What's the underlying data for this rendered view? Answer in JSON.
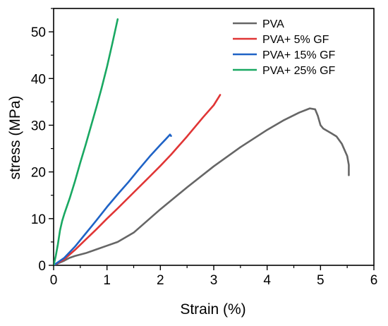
{
  "chart_data": {
    "type": "line",
    "title": "",
    "xlabel": "Strain (%)",
    "ylabel": "stress (MPa)",
    "xlim": [
      0,
      6
    ],
    "ylim": [
      0,
      55
    ],
    "x_ticks": [
      0,
      1,
      2,
      3,
      4,
      5,
      6
    ],
    "y_ticks": [
      0,
      10,
      20,
      30,
      40,
      50
    ],
    "x_tick_labels": [
      "0",
      "1",
      "2",
      "3",
      "4",
      "5",
      "6"
    ],
    "y_tick_labels": [
      "0",
      "10",
      "20",
      "30",
      "40",
      "50"
    ],
    "grid": false,
    "legend_position": "top-right",
    "series": [
      {
        "name": "PVA",
        "color": "#666666",
        "points": [
          [
            0,
            0
          ],
          [
            0.1,
            0.5
          ],
          [
            0.2,
            1.0
          ],
          [
            0.3,
            1.6
          ],
          [
            0.4,
            2.0
          ],
          [
            0.6,
            2.6
          ],
          [
            0.8,
            3.4
          ],
          [
            1.0,
            4.2
          ],
          [
            1.2,
            5.0
          ],
          [
            1.5,
            7.0
          ],
          [
            2.0,
            12.0
          ],
          [
            2.5,
            16.7
          ],
          [
            3.0,
            21.2
          ],
          [
            3.5,
            25.3
          ],
          [
            4.0,
            29.0
          ],
          [
            4.3,
            31.0
          ],
          [
            4.6,
            32.7
          ],
          [
            4.8,
            33.6
          ],
          [
            4.9,
            33.4
          ],
          [
            4.95,
            32.0
          ],
          [
            5.0,
            30.0
          ],
          [
            5.05,
            29.3
          ],
          [
            5.2,
            28.3
          ],
          [
            5.3,
            27.6
          ],
          [
            5.4,
            26.0
          ],
          [
            5.5,
            23.4
          ],
          [
            5.53,
            21.5
          ],
          [
            5.53,
            19.3
          ]
        ]
      },
      {
        "name": "PVA+ 5% GF",
        "color": "#e03535",
        "points": [
          [
            0,
            0
          ],
          [
            0.2,
            1.3
          ],
          [
            0.4,
            3.3
          ],
          [
            0.6,
            5.5
          ],
          [
            0.8,
            7.7
          ],
          [
            1.0,
            10.0
          ],
          [
            1.2,
            12.2
          ],
          [
            1.5,
            15.6
          ],
          [
            1.8,
            19.0
          ],
          [
            2.0,
            21.3
          ],
          [
            2.2,
            23.7
          ],
          [
            2.5,
            27.6
          ],
          [
            2.8,
            31.7
          ],
          [
            3.0,
            34.3
          ],
          [
            3.12,
            36.5
          ]
        ]
      },
      {
        "name": "PVA+ 15% GF",
        "color": "#1f63c6",
        "points": [
          [
            0,
            0
          ],
          [
            0.2,
            1.6
          ],
          [
            0.4,
            4.0
          ],
          [
            0.6,
            6.8
          ],
          [
            0.8,
            9.6
          ],
          [
            1.0,
            12.5
          ],
          [
            1.2,
            15.2
          ],
          [
            1.4,
            17.8
          ],
          [
            1.6,
            20.6
          ],
          [
            1.8,
            23.3
          ],
          [
            2.0,
            25.8
          ],
          [
            2.1,
            27.0
          ],
          [
            2.18,
            28.0
          ],
          [
            2.2,
            27.7
          ]
        ]
      },
      {
        "name": "PVA+ 25% GF",
        "color": "#19a862",
        "points": [
          [
            0,
            0
          ],
          [
            0.04,
            2.0
          ],
          [
            0.08,
            4.5
          ],
          [
            0.12,
            7.5
          ],
          [
            0.16,
            9.5
          ],
          [
            0.2,
            11.0
          ],
          [
            0.3,
            14.3
          ],
          [
            0.4,
            18.0
          ],
          [
            0.5,
            22.0
          ],
          [
            0.6,
            25.8
          ],
          [
            0.7,
            29.8
          ],
          [
            0.8,
            33.8
          ],
          [
            0.9,
            38.0
          ],
          [
            1.0,
            42.5
          ],
          [
            1.1,
            47.5
          ],
          [
            1.2,
            52.7
          ]
        ]
      }
    ]
  }
}
